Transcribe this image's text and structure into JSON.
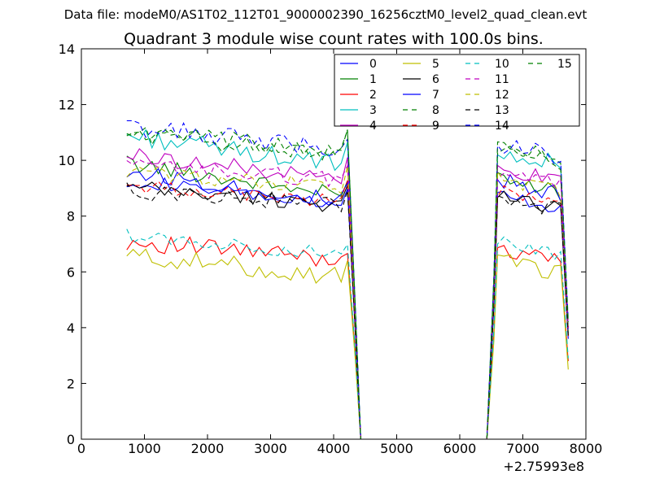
{
  "header": {
    "data_file_label": "Data file: modeM0/AS1T02_112T01_9000002390_16256cztM0_level2_quad_clean.evt"
  },
  "chart_data": {
    "type": "line",
    "title": "Quadrant 3 module wise count rates with 100.0s bins.",
    "xlabel": "",
    "ylabel": "",
    "x_offset_label": "+2.75993e8",
    "xlim": [
      0,
      8000
    ],
    "ylim": [
      0,
      14
    ],
    "xticks": [
      0,
      1000,
      2000,
      3000,
      4000,
      5000,
      6000,
      7000,
      8000
    ],
    "yticks": [
      0,
      2,
      4,
      6,
      8,
      10,
      12,
      14
    ],
    "legend_position": "top-right",
    "legend_columns": 4,
    "segment1": {
      "x_start": 720,
      "x_step": 100,
      "n": 36,
      "drop_x": [
        4340,
        4430
      ]
    },
    "segment2": {
      "rise_x": [
        6430,
        6540
      ],
      "x_start": 6600,
      "x_step": 100,
      "n": 11,
      "tail_x": 7720
    },
    "series": [
      {
        "name": "0",
        "color": "#0000ff",
        "dash": "solid",
        "base1": 9.3,
        "base2": 8.8,
        "end1": 8.3,
        "amp": 0.25,
        "tail": 3.6
      },
      {
        "name": "1",
        "color": "#008000",
        "dash": "solid",
        "base1": 9.9,
        "base2": 9.3,
        "end1": 8.7,
        "amp": 0.3,
        "tail": 3.8
      },
      {
        "name": "2",
        "color": "#ff0000",
        "dash": "solid",
        "base1": 7.1,
        "base2": 6.9,
        "end1": 6.4,
        "amp": 0.35,
        "tail": 2.8
      },
      {
        "name": "3",
        "color": "#00bfbf",
        "dash": "solid",
        "base1": 10.9,
        "base2": 10.4,
        "end1": 9.8,
        "amp": 0.35,
        "tail": 4.1
      },
      {
        "name": "4",
        "color": "#bf00bf",
        "dash": "solid",
        "base1": 10.2,
        "base2": 9.7,
        "end1": 9.3,
        "amp": 0.3,
        "tail": 4.0
      },
      {
        "name": "5",
        "color": "#bfbf00",
        "dash": "solid",
        "base1": 6.6,
        "base2": 6.4,
        "end1": 5.8,
        "amp": 0.35,
        "tail": 2.5
      },
      {
        "name": "6",
        "color": "#000000",
        "dash": "solid",
        "base1": 9.0,
        "base2": 8.8,
        "end1": 8.4,
        "amp": 0.3,
        "tail": 3.7
      },
      {
        "name": "7",
        "color": "#0000ff",
        "dash": "solid",
        "base1": 9.6,
        "base2": 9.3,
        "end1": 8.5,
        "amp": 0.3,
        "tail": 3.9
      },
      {
        "name": "8",
        "color": "#008000",
        "dash": "dashed",
        "base1": 11.0,
        "base2": 10.5,
        "end1": 10.2,
        "amp": 0.35,
        "tail": 4.2
      },
      {
        "name": "9",
        "color": "#ff0000",
        "dash": "dashed",
        "base1": 9.1,
        "base2": 8.9,
        "end1": 8.5,
        "amp": 0.25,
        "tail": 3.7
      },
      {
        "name": "10",
        "color": "#00bfbf",
        "dash": "dashed",
        "base1": 7.3,
        "base2": 7.1,
        "end1": 6.6,
        "amp": 0.25,
        "tail": 2.9
      },
      {
        "name": "11",
        "color": "#bf00bf",
        "dash": "dashed",
        "base1": 9.8,
        "base2": 9.6,
        "end1": 9.3,
        "amp": 0.3,
        "tail": 4.0
      },
      {
        "name": "12",
        "color": "#bfbf00",
        "dash": "dashed",
        "base1": 9.6,
        "base2": 9.4,
        "end1": 9.0,
        "amp": 0.3,
        "tail": 3.9
      },
      {
        "name": "13",
        "color": "#000000",
        "dash": "dashed",
        "base1": 8.9,
        "base2": 8.7,
        "end1": 8.4,
        "amp": 0.3,
        "tail": 3.7
      },
      {
        "name": "14",
        "color": "#0000ff",
        "dash": "dashed",
        "base1": 11.2,
        "base2": 10.6,
        "end1": 10.4,
        "amp": 0.35,
        "tail": 4.3
      },
      {
        "name": "15",
        "color": "#008000",
        "dash": "dashed",
        "base1": 11.0,
        "base2": 10.4,
        "end1": 10.3,
        "amp": 0.35,
        "tail": 4.2
      }
    ]
  }
}
